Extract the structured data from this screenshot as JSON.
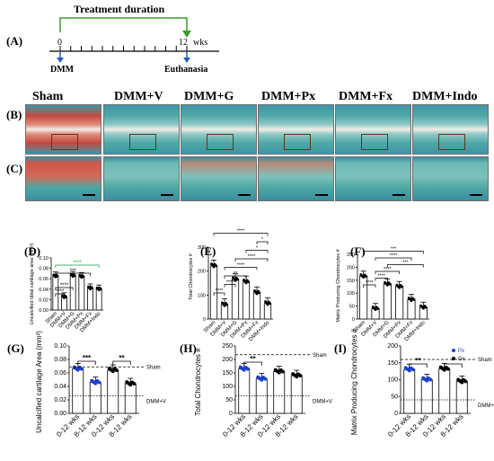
{
  "timeline": {
    "panel": "(A)",
    "treatment_label": "Treatment duration",
    "start_tick": "0",
    "end_tick": "12",
    "unit": "wks",
    "start_event": "DMM",
    "end_event": "Euthanasia"
  },
  "histology": {
    "row_labels": [
      "(B)",
      "(C)"
    ],
    "groups": [
      "Sham",
      "DMM+V",
      "DMM+G",
      "DMM+Px",
      "DMM+Fx",
      "DMM+Indo"
    ]
  },
  "charts": {
    "D": {
      "letter": "(D)",
      "ylabel": "Uncalcified tibial cartilage area (mm²)",
      "yticks": [
        "0.00",
        "0.02",
        "0.04",
        "0.06",
        "0.08",
        "0.10"
      ],
      "categories": [
        "Sham",
        "DMM+V",
        "DMM+G",
        "DMM+Px",
        "DMM+Fx",
        "DMM+Indo"
      ],
      "sig": [
        "****",
        "****",
        "***",
        "****"
      ]
    },
    "E": {
      "letter": "(E)",
      "ylabel": "Total Chondrocytes #",
      "yticks": [
        "0",
        "100",
        "200",
        "300"
      ],
      "categories": [
        "Sham",
        "DMM+V",
        "DMM+G",
        "DMM+Px",
        "DMM+Fx",
        "DMM+Indo"
      ],
      "sig": [
        "****",
        "****",
        "**",
        "****",
        "****",
        "*",
        "*",
        "****"
      ]
    },
    "F": {
      "letter": "(F)",
      "ylabel": "Matrix Producing Chondrocytes #",
      "yticks": [
        "0",
        "50",
        "100",
        "150",
        "200",
        "250"
      ],
      "categories": [
        "Sham",
        "DMM+V",
        "DMM+G",
        "DMM+Px",
        "DMM+Fx",
        "DMM+Indo"
      ],
      "sig": [
        "****",
        "****",
        "****",
        "***",
        "****",
        "***"
      ]
    },
    "G": {
      "letter": "(G)",
      "ylabel": "Uncalcified cartilage Area (mm²)",
      "yticks": [
        "0.00",
        "0.02",
        "0.04",
        "0.06",
        "0.08",
        "0.10"
      ],
      "categories": [
        "0-12 wks",
        "8-12 wks",
        "0-12 wks",
        "8-12 wks"
      ],
      "sig": [
        "***",
        "**"
      ],
      "ref_top": "Sham",
      "ref_bottom": "DMM+V"
    },
    "H": {
      "letter": "(H)",
      "ylabel": "Total Chondrocytes #",
      "yticks": [
        "0",
        "50",
        "100",
        "150",
        "200",
        "250"
      ],
      "categories": [
        "0-12 wks",
        "8-12 wks",
        "0-12 wks",
        "8-12 wks"
      ],
      "sig": [
        "**"
      ],
      "ref_top": "Sham",
      "ref_bottom": "DMM+V"
    },
    "I": {
      "letter": "(I)",
      "ylabel": "Matrix Producing Chondrocytes #",
      "yticks": [
        "0",
        "50",
        "100",
        "150",
        "200"
      ],
      "categories": [
        "0-12 wks",
        "8-12 wks",
        "0-12 wks",
        "8-12 wks"
      ],
      "sig": [
        "**",
        "*"
      ],
      "ref_top": "Sham",
      "ref_bottom": "DMM+V",
      "legend": [
        "Px",
        "Gx"
      ]
    }
  },
  "chart_data": [
    {
      "type": "bar",
      "panel": "D",
      "categories": [
        "Sham",
        "DMM+V",
        "DMM+G",
        "DMM+Px",
        "DMM+Fx",
        "DMM+Indo"
      ],
      "values": [
        0.065,
        0.025,
        0.066,
        0.064,
        0.042,
        0.04
      ],
      "ylim": [
        0,
        0.1
      ],
      "ylabel": "Uncalcified tibial cartilage area (mm²)"
    },
    {
      "type": "bar",
      "panel": "E",
      "categories": [
        "Sham",
        "DMM+V",
        "DMM+G",
        "DMM+Px",
        "DMM+Fx",
        "DMM+Indo"
      ],
      "values": [
        222,
        60,
        165,
        155,
        110,
        65
      ],
      "ylim": [
        0,
        300
      ],
      "ylabel": "Total Chondrocytes #"
    },
    {
      "type": "bar",
      "panel": "F",
      "categories": [
        "Sham",
        "DMM+V",
        "DMM+G",
        "DMM+Px",
        "DMM+Fx",
        "DMM+Indo"
      ],
      "values": [
        165,
        40,
        135,
        125,
        75,
        45
      ],
      "ylim": [
        0,
        250
      ],
      "ylabel": "Matrix Producing Chondrocytes #"
    },
    {
      "type": "bar",
      "panel": "G",
      "categories": [
        "0-12 wks",
        "8-12 wks",
        "0-12 wks",
        "8-12 wks"
      ],
      "values": [
        0.066,
        0.046,
        0.064,
        0.044
      ],
      "ylim": [
        0,
        0.1
      ],
      "ylabel": "Uncalcified cartilage Area (mm²)"
    },
    {
      "type": "bar",
      "panel": "H",
      "categories": [
        "0-12 wks",
        "8-12 wks",
        "0-12 wks",
        "8-12 wks"
      ],
      "values": [
        165,
        128,
        155,
        140
      ],
      "ylim": [
        0,
        250
      ],
      "ylabel": "Total Chondrocytes #"
    },
    {
      "type": "bar",
      "panel": "I",
      "categories": [
        "0-12 wks",
        "8-12 wks",
        "0-12 wks",
        "8-12 wks"
      ],
      "values": [
        130,
        100,
        132,
        95
      ],
      "ylim": [
        0,
        200
      ],
      "ylabel": "Matrix Producing Chondrocytes #",
      "series": [
        {
          "name": "Px"
        },
        {
          "name": "Gx"
        }
      ]
    }
  ]
}
